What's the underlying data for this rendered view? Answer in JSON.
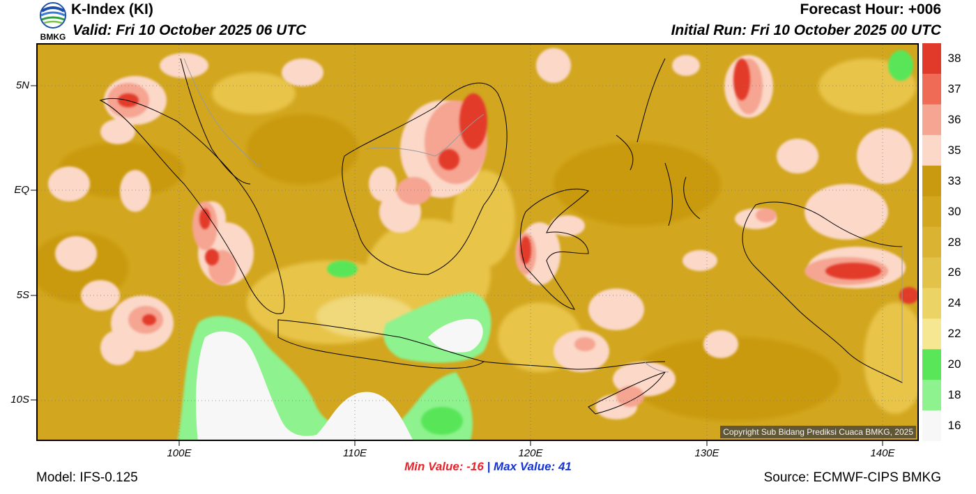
{
  "header": {
    "title": "K-Index (KI)",
    "valid": "Valid: Fri 10 October 2025 06 UTC",
    "forecast_hour": "Forecast Hour: +006",
    "initial_run": "Initial Run: Fri 10 October 2025 00 UTC",
    "logo_text": "BMKG"
  },
  "map": {
    "lat_labels": [
      "5N",
      "EQ",
      "5S",
      "10S"
    ],
    "lon_labels": [
      "100E",
      "110E",
      "120E",
      "130E",
      "140E"
    ],
    "copyright": "Copyright Sub Bidang Prediksi Cuaca BMKG, 2025"
  },
  "colorbar": {
    "labels": [
      "38",
      "37",
      "36",
      "35",
      "33",
      "30",
      "28",
      "26",
      "24",
      "22",
      "20",
      "18",
      "16"
    ],
    "colors": [
      "#e23a2a",
      "#ef6b55",
      "#f5a592",
      "#fbd8c8",
      "#c99a10",
      "#d2a61e",
      "#dbb332",
      "#e3c24a",
      "#ecd365",
      "#f6e793",
      "#59e659",
      "#8ef28e",
      "#f7f7f7"
    ]
  },
  "stats": {
    "min": "Min Value: -16",
    "separator": "|",
    "max": "Max Value:  41"
  },
  "footer": {
    "model": "Model: IFS-0.125",
    "source": "Source: ECMWF-CIPS BMKG"
  },
  "colors": {
    "base": "#d2a61e",
    "dark": "#c99a10",
    "light": "#e8c44a",
    "pale": "#f0d97a",
    "pink_light": "#fbd8c8",
    "pink": "#f5a592",
    "red": "#e23a2a",
    "green": "#59e659",
    "green_light": "#8ef28e",
    "white": "#f7f7f7"
  }
}
